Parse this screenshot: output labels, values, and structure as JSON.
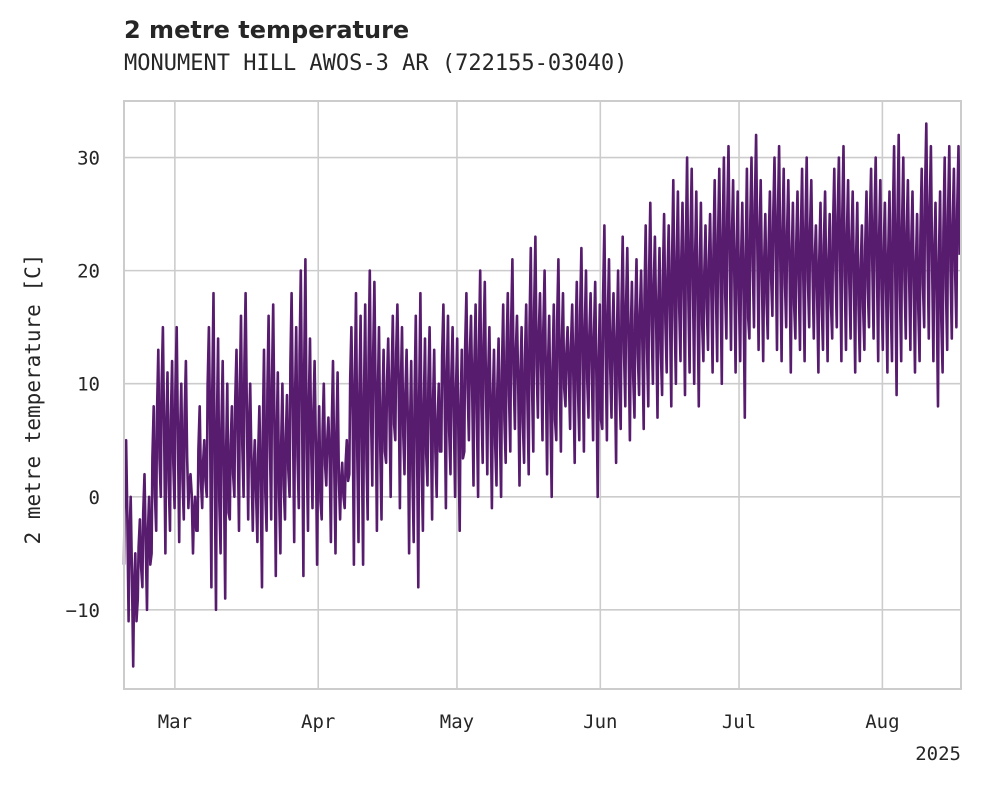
{
  "chart_data": {
    "type": "line",
    "title": "2 metre temperature",
    "subtitle": "MONUMENT HILL AWOS-3 AR (722155-03040)",
    "xlabel": "",
    "ylabel": "2 metre temperature [C]",
    "x_start": "2025-02-18",
    "x_end": "2025-08-17",
    "xlim": [
      "2025-02-18",
      "2025-08-18"
    ],
    "ylim": [
      -17,
      35
    ],
    "yticks": [
      -10,
      0,
      10,
      20,
      30
    ],
    "ytick_labels": [
      "−10",
      "0",
      "10",
      "20",
      "30"
    ],
    "xticks": [
      "2025-03-01",
      "2025-04-01",
      "2025-05-01",
      "2025-06-01",
      "2025-07-01",
      "2025-08-01"
    ],
    "xtick_labels": [
      "Mar",
      "Apr",
      "May",
      "Jun",
      "Jul",
      "Aug"
    ],
    "x_year_label": "2025",
    "grid": true,
    "series": [
      {
        "color": "#581c6e",
        "daily_min": [
          -6,
          -11,
          -15,
          -9,
          -8,
          -10,
          -5,
          -3,
          0,
          -5,
          -3,
          -1,
          -4,
          -2,
          -1,
          -5,
          -3,
          -1,
          0,
          -8,
          -10,
          -5,
          -9,
          -2,
          0,
          -3,
          0,
          -2,
          -3,
          -4,
          -8,
          -3,
          -2,
          -7,
          -5,
          -2,
          0,
          -4,
          -1,
          -7,
          -3,
          -1,
          -6,
          -2,
          1,
          -4,
          -5,
          -2,
          -1,
          2,
          -6,
          -4,
          -6,
          -2,
          1,
          -3,
          -2,
          3,
          0,
          5,
          -1,
          2,
          -5,
          -4,
          -8,
          -3,
          1,
          -2,
          0,
          4,
          -1,
          2,
          0,
          -3,
          4,
          5,
          1,
          0,
          3,
          2,
          -1,
          1,
          0,
          3,
          4,
          6,
          1,
          3,
          2,
          4,
          7,
          5,
          2,
          0,
          5,
          4,
          8,
          6,
          3,
          5,
          4,
          7,
          5,
          0,
          6,
          5,
          7,
          3,
          6,
          8,
          5,
          7,
          9,
          6,
          8,
          10,
          7,
          9,
          11,
          8,
          10,
          12,
          9,
          11,
          10,
          8,
          12,
          13,
          11,
          12,
          10,
          14,
          13,
          11,
          12,
          7,
          14,
          15,
          13,
          12,
          14,
          16,
          13,
          12,
          15,
          11,
          14,
          13,
          12,
          15,
          14,
          11,
          13,
          12,
          14,
          15,
          12,
          13,
          14,
          11,
          12,
          13,
          15,
          14,
          12,
          13,
          11,
          12,
          9,
          12,
          14,
          13,
          11,
          12,
          15,
          14,
          12,
          8,
          11,
          13,
          14,
          15
        ],
        "daily_max": [
          5,
          0,
          -5,
          -2,
          2,
          0,
          8,
          13,
          15,
          11,
          12,
          15,
          10,
          12,
          2,
          0,
          8,
          5,
          15,
          18,
          14,
          12,
          10,
          8,
          13,
          16,
          18,
          10,
          5,
          8,
          13,
          16,
          17,
          11,
          10,
          9,
          18,
          15,
          20,
          21,
          14,
          12,
          8,
          10,
          7,
          12,
          11,
          3,
          5,
          15,
          18,
          16,
          17,
          20,
          19,
          15,
          13,
          14,
          16,
          17,
          15,
          13,
          12,
          16,
          18,
          14,
          15,
          13,
          10,
          17,
          16,
          15,
          14,
          13,
          18,
          16,
          17,
          20,
          19,
          15,
          13,
          14,
          17,
          18,
          21,
          16,
          15,
          17,
          22,
          23,
          18,
          20,
          16,
          17,
          21,
          18,
          15,
          17,
          19,
          22,
          20,
          18,
          19,
          17,
          24,
          21,
          18,
          20,
          23,
          22,
          19,
          21,
          20,
          24,
          26,
          23,
          22,
          25,
          24,
          28,
          27,
          26,
          30,
          29,
          27,
          26,
          24,
          25,
          28,
          29,
          30,
          31,
          28,
          27,
          26,
          29,
          30,
          32,
          28,
          25,
          27,
          30,
          31,
          29,
          28,
          26,
          27,
          29,
          30,
          28,
          24,
          26,
          27,
          25,
          29,
          30,
          31,
          28,
          27,
          26,
          24,
          27,
          29,
          30,
          28,
          26,
          27,
          31,
          32,
          30,
          28,
          27,
          25,
          29,
          33,
          31,
          26,
          27,
          30,
          31,
          29,
          31
        ]
      }
    ]
  }
}
